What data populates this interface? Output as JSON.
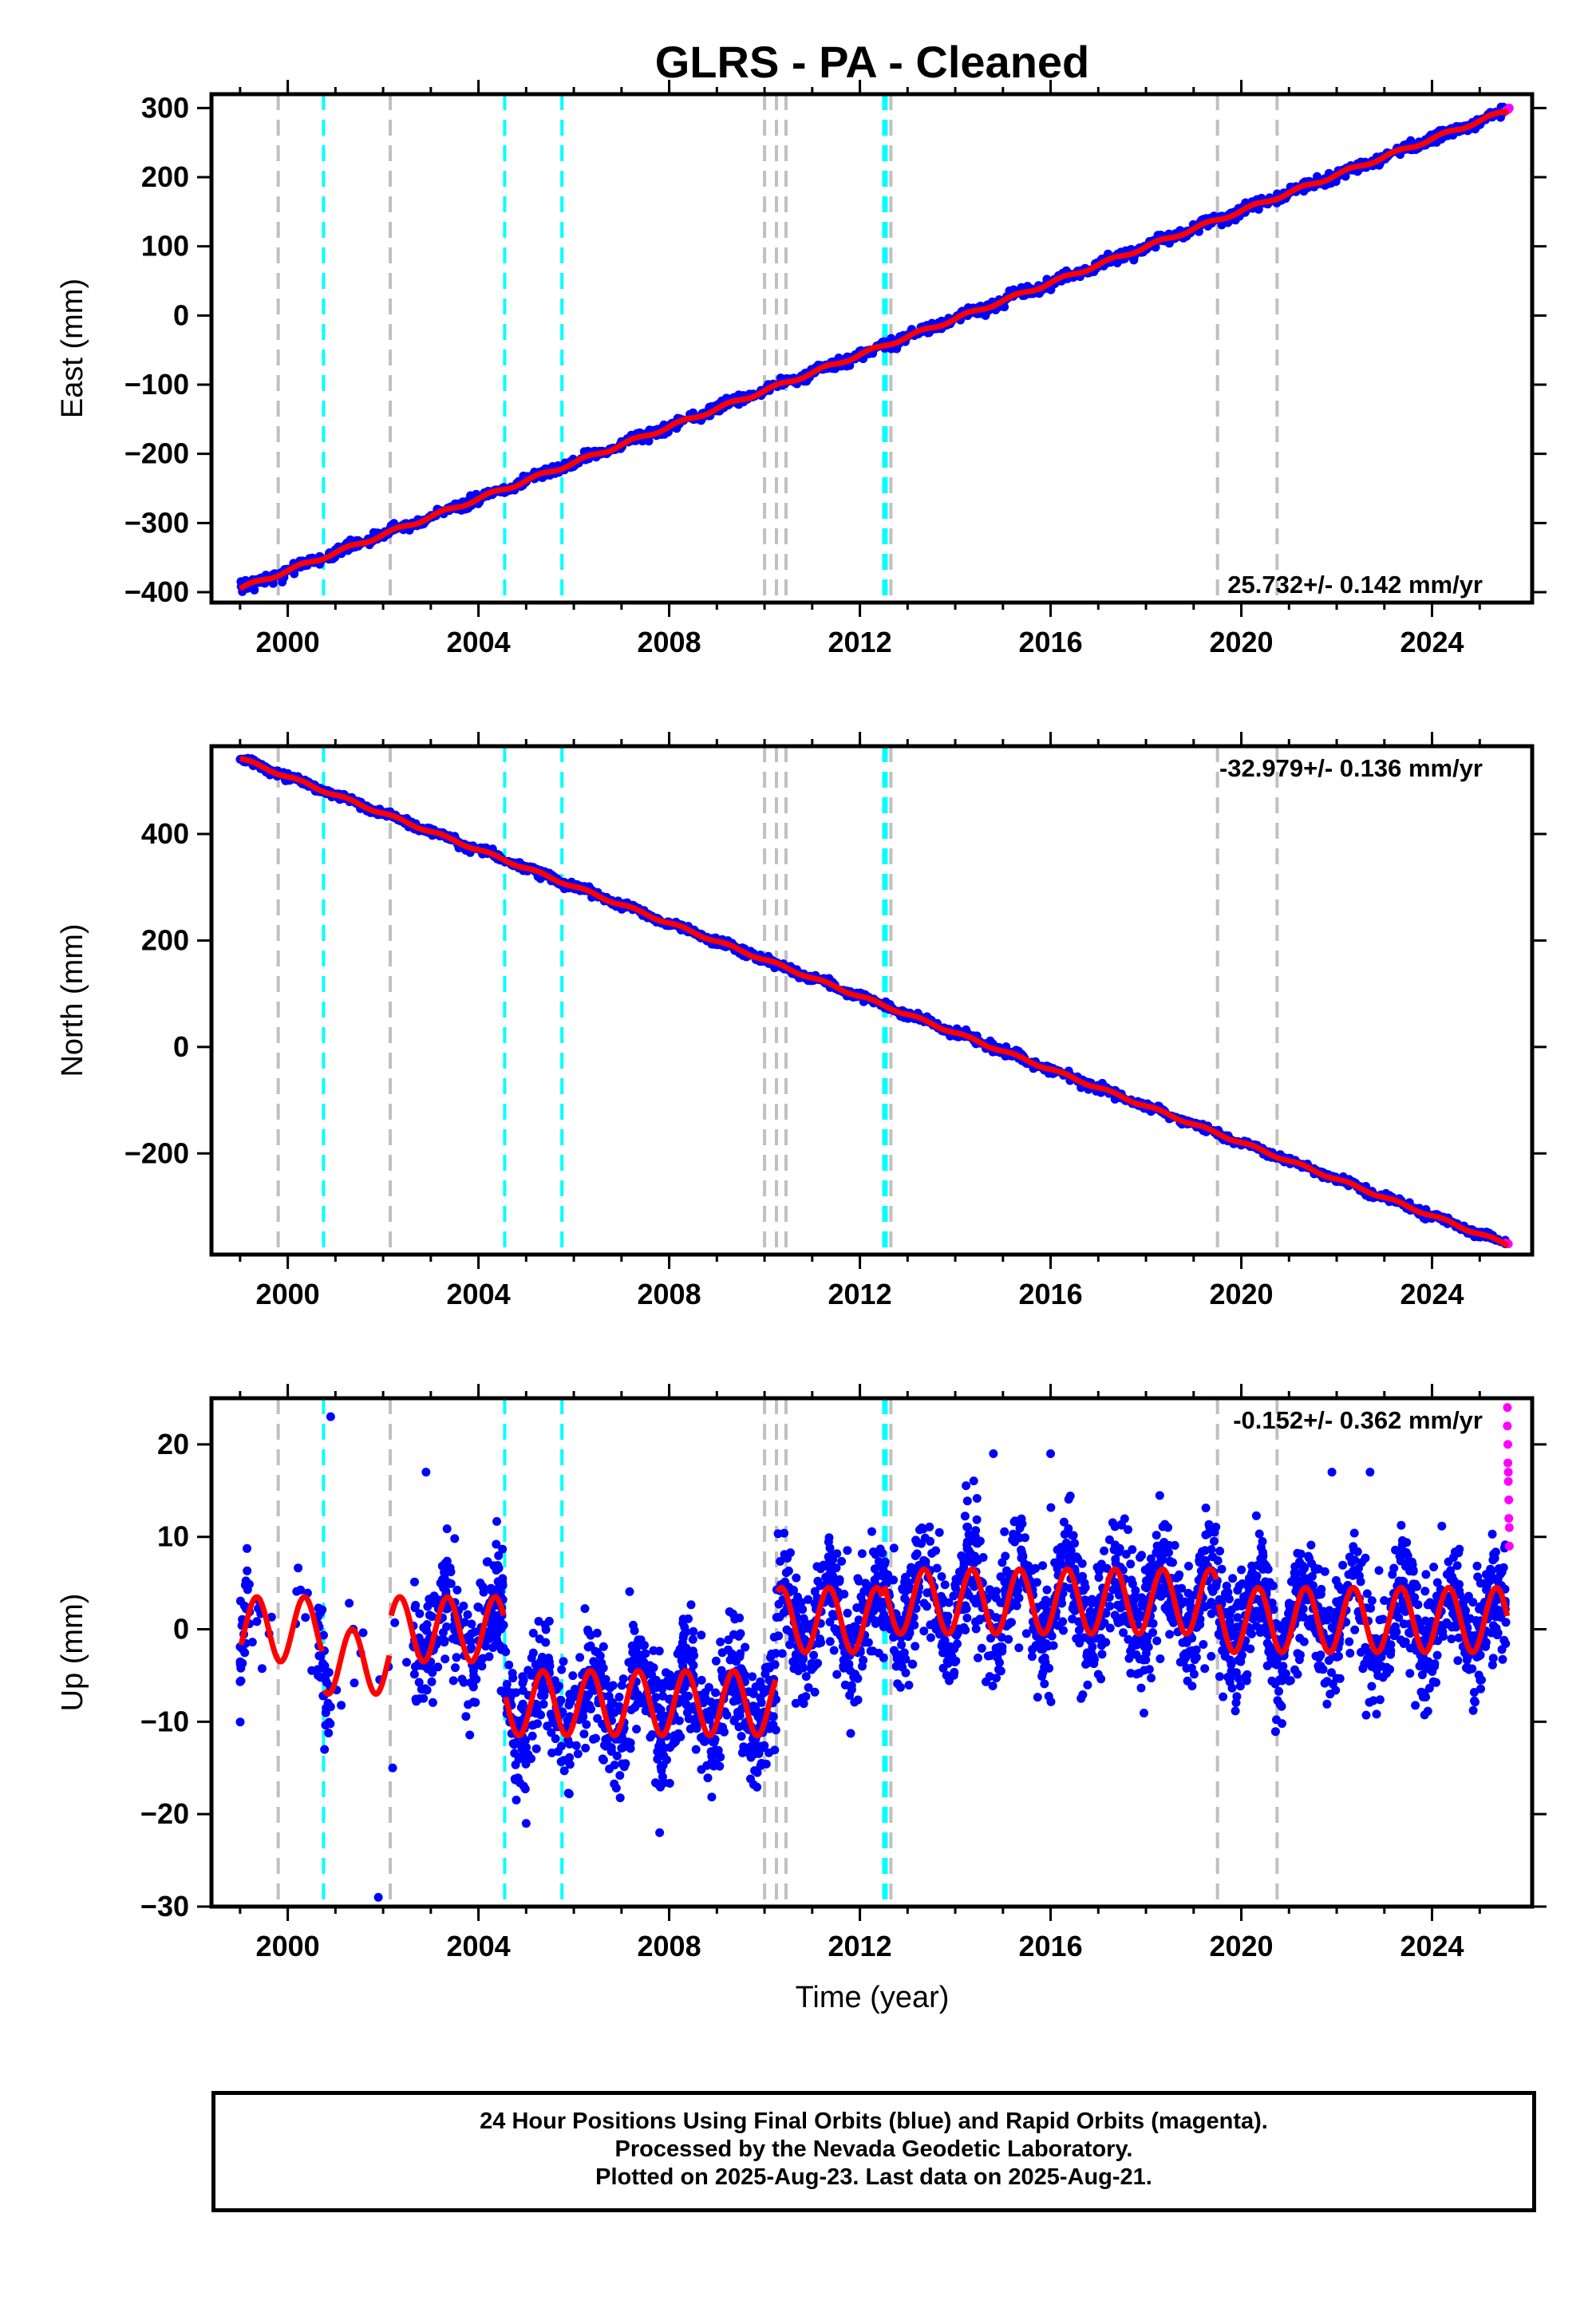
{
  "title": "GLRS  - PA - Cleaned",
  "xlabel": "Time (year)",
  "caption": {
    "line1": "24 Hour Positions Using Final Orbits (blue) and Rapid Orbits (magenta).",
    "line2": "Processed by the Nevada Geodetic Laboratory.",
    "line3": "Plotted on 2025-Aug-23. Last data on 2025-Aug-21."
  },
  "colors": {
    "final_orbits": "#0000ff",
    "rapid_orbits": "#ff00ff",
    "model": "#ff0000",
    "equipment_change": "#c0c0c0",
    "earthquake": "#00ffff"
  },
  "chart_data": [
    {
      "type": "scatter",
      "name": "east",
      "ylabel": "East (mm)",
      "rate_label": "25.732+/- 0.142 mm/yr",
      "xlim": [
        1998.4,
        2026.1
      ],
      "ylim": [
        -415,
        320
      ],
      "x_ticks": [
        2000,
        2004,
        2008,
        2012,
        2016,
        2020,
        2024
      ],
      "y_ticks": [
        -400,
        -300,
        -200,
        -100,
        0,
        100,
        200,
        300
      ],
      "gray_dashed_lines": [
        1999.8,
        2002.15,
        2010.0,
        2010.25,
        2010.45,
        2012.65,
        2019.5,
        2020.75
      ],
      "cyan_dashed_lines": [
        2000.75,
        2004.55,
        2005.75,
        2012.5,
        2012.55
      ],
      "trend": {
        "x": [
          1999.0,
          2025.6
        ],
        "y": [
          -395,
          297
        ]
      },
      "final_orbits_sample": [
        [
          1999.0,
          -394
        ],
        [
          2000.0,
          -370
        ],
        [
          2001.0,
          -345
        ],
        [
          2002.0,
          -310
        ],
        [
          2003.0,
          -285
        ],
        [
          2004.0,
          -258
        ],
        [
          2005.0,
          -232
        ],
        [
          2006.0,
          -207
        ],
        [
          2007.0,
          -181
        ],
        [
          2008.0,
          -155
        ],
        [
          2009.0,
          -129
        ],
        [
          2010.0,
          -104
        ],
        [
          2011.0,
          -77
        ],
        [
          2012.0,
          -52
        ],
        [
          2013.0,
          -26
        ],
        [
          2014.0,
          0
        ],
        [
          2015.0,
          25
        ],
        [
          2016.0,
          51
        ],
        [
          2017.0,
          77
        ],
        [
          2018.0,
          103
        ],
        [
          2019.0,
          129
        ],
        [
          2020.0,
          154
        ],
        [
          2021.0,
          180
        ],
        [
          2022.0,
          206
        ],
        [
          2023.0,
          232
        ],
        [
          2024.0,
          257
        ],
        [
          2025.0,
          283
        ]
      ],
      "rapid_orbits": [
        [
          2025.55,
          296
        ],
        [
          2025.6,
          298
        ],
        [
          2025.62,
          300
        ]
      ]
    },
    {
      "type": "scatter",
      "name": "north",
      "ylabel": "North (mm)",
      "rate_label": "-32.979+/- 0.136 mm/yr",
      "xlim": [
        1998.4,
        2026.1
      ],
      "ylim": [
        -390,
        565
      ],
      "x_ticks": [
        2000,
        2004,
        2008,
        2012,
        2016,
        2020,
        2024
      ],
      "y_ticks": [
        -200,
        0,
        200,
        400
      ],
      "gray_dashed_lines": [
        1999.8,
        2002.15,
        2010.0,
        2010.25,
        2010.45,
        2012.65,
        2019.5,
        2020.75
      ],
      "cyan_dashed_lines": [
        2000.75,
        2004.55,
        2005.75,
        2012.5,
        2012.55
      ],
      "trend": {
        "x": [
          1999.0,
          2025.6
        ],
        "y": [
          542,
          -372
        ]
      },
      "offset_2010": {
        "at": 2010.25,
        "before": 175,
        "after": 160
      },
      "final_orbits_sample": [
        [
          1999.0,
          542
        ],
        [
          2000.0,
          508
        ],
        [
          2001.0,
          480
        ],
        [
          2002.0,
          449
        ],
        [
          2003.0,
          418
        ],
        [
          2004.0,
          386
        ],
        [
          2005.0,
          352
        ],
        [
          2006.0,
          316
        ],
        [
          2007.0,
          290
        ],
        [
          2008.0,
          258
        ],
        [
          2009.0,
          224
        ],
        [
          2010.0,
          191
        ],
        [
          2011.0,
          139
        ],
        [
          2012.0,
          88
        ],
        [
          2013.0,
          51
        ],
        [
          2014.0,
          17
        ],
        [
          2015.0,
          -16
        ],
        [
          2016.0,
          -49
        ],
        [
          2017.0,
          -82
        ],
        [
          2018.0,
          -115
        ],
        [
          2019.0,
          -149
        ],
        [
          2020.0,
          -182
        ],
        [
          2021.0,
          -215
        ],
        [
          2022.0,
          -248
        ],
        [
          2023.0,
          -281
        ],
        [
          2024.0,
          -313
        ],
        [
          2025.0,
          -347
        ]
      ],
      "rapid_orbits": [
        [
          2025.55,
          -368
        ],
        [
          2025.6,
          -370
        ]
      ]
    },
    {
      "type": "scatter",
      "name": "up",
      "ylabel": "Up (mm)",
      "rate_label": "-0.152+/- 0.362 mm/yr",
      "xlim": [
        1998.4,
        2026.1
      ],
      "ylim": [
        -30,
        25
      ],
      "x_ticks": [
        2000,
        2004,
        2008,
        2012,
        2016,
        2020,
        2024
      ],
      "y_ticks": [
        -30,
        -20,
        -10,
        0,
        10,
        20
      ],
      "gray_dashed_lines": [
        1999.8,
        2002.15,
        2010.0,
        2010.25,
        2010.45,
        2012.65,
        2019.5,
        2020.75
      ],
      "cyan_dashed_lines": [
        2000.75,
        2004.55,
        2005.75,
        2012.5,
        2012.55
      ],
      "seasonal_amplitude_mm": 3.5,
      "segments": [
        {
          "x0": 1999.0,
          "x1": 2000.75,
          "level": 0.0
        },
        {
          "x0": 2000.75,
          "x1": 2002.15,
          "level": -3.5
        },
        {
          "x0": 2002.15,
          "x1": 2004.55,
          "level": 0.0
        },
        {
          "x0": 2004.55,
          "x1": 2010.25,
          "level": -8.0
        },
        {
          "x0": 2010.25,
          "x1": 2012.5,
          "level": 1.0
        },
        {
          "x0": 2012.5,
          "x1": 2019.5,
          "level": 3.0
        },
        {
          "x0": 2019.5,
          "x1": 2025.6,
          "level": 1.0
        }
      ],
      "outliers": [
        [
          2000.9,
          23
        ],
        [
          2001.9,
          -29
        ],
        [
          2002.2,
          -15
        ],
        [
          2002.9,
          17
        ],
        [
          2014.8,
          19
        ],
        [
          2016.0,
          19
        ],
        [
          2021.9,
          17
        ],
        [
          2022.7,
          17
        ],
        [
          2007.8,
          -22
        ],
        [
          2005.0,
          -21
        ]
      ],
      "rapid_orbits": [
        [
          2025.58,
          24
        ],
        [
          2025.58,
          22
        ],
        [
          2025.59,
          20
        ],
        [
          2025.59,
          18
        ],
        [
          2025.6,
          17
        ],
        [
          2025.6,
          16
        ],
        [
          2025.61,
          14
        ],
        [
          2025.61,
          12
        ],
        [
          2025.62,
          11
        ],
        [
          2025.62,
          9
        ]
      ]
    }
  ]
}
